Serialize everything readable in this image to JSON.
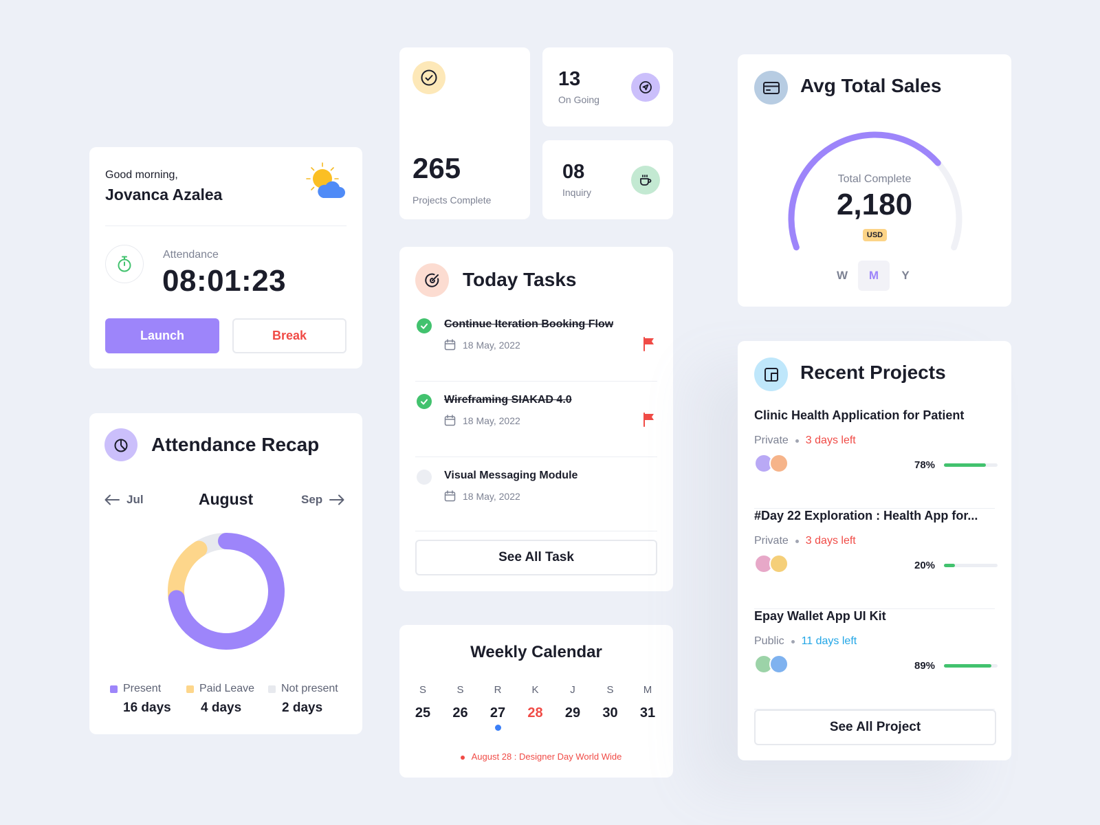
{
  "colors": {
    "accent": "#9d85fa",
    "danger": "#f04b46",
    "success": "#42c26e",
    "link": "#22a6e6",
    "paid_leave": "#fdd68b",
    "not_present": "#e7e9ee"
  },
  "greeting": {
    "hello": "Good morning,",
    "name": "Jovanca Azalea",
    "weather_icon": "sun-cloud-icon"
  },
  "attendance": {
    "label": "Attendance",
    "time": "08:01:23",
    "launch_label": "Launch",
    "break_label": "Break"
  },
  "recap": {
    "title": "Attendance Recap",
    "prev": "Jul",
    "month": "August",
    "next": "Sep",
    "legend": [
      {
        "label": "Present",
        "value": "16 days",
        "days": 16,
        "color": "#9d85fa"
      },
      {
        "label": "Paid Leave",
        "value": "4 days",
        "days": 4,
        "color": "#fdd68b"
      },
      {
        "label": "Not present",
        "value": "2 days",
        "days": 2,
        "color": "#e7e9ee"
      }
    ]
  },
  "stats": {
    "projects_complete": {
      "value": "265",
      "label": "Projects Complete"
    },
    "on_going": {
      "value": "13",
      "label": "On Going"
    },
    "inquiry": {
      "value": "08",
      "label": "Inquiry"
    }
  },
  "tasks": {
    "title": "Today Tasks",
    "items": [
      {
        "title": "Continue Iteration Booking Flow",
        "date": "18 May, 2022",
        "done": true,
        "flag": true
      },
      {
        "title": "Wireframing SIAKAD 4.0",
        "date": "18 May, 2022",
        "done": true,
        "flag": true
      },
      {
        "title": "Visual Messaging Module",
        "date": "18 May, 2022",
        "done": false,
        "flag": false
      }
    ],
    "see_all": "See All Task"
  },
  "calendar": {
    "title": "Weekly Calendar",
    "days": [
      {
        "d": "S",
        "n": "25"
      },
      {
        "d": "S",
        "n": "26"
      },
      {
        "d": "R",
        "n": "27",
        "dot": true
      },
      {
        "d": "K",
        "n": "28",
        "highlight": true
      },
      {
        "d": "J",
        "n": "29"
      },
      {
        "d": "S",
        "n": "30"
      },
      {
        "d": "M",
        "n": "31"
      }
    ],
    "event": "August 28 : Designer Day World Wide"
  },
  "sales": {
    "title": "Avg Total Sales",
    "sub": "Total Complete",
    "value": "2,180",
    "currency": "USD",
    "progress": 0.72,
    "periods": [
      "W",
      "M",
      "Y"
    ],
    "active_period": "M"
  },
  "projects": {
    "title": "Recent Projects",
    "items": [
      {
        "title": "Clinic Health Application for Patient",
        "visibility": "Private",
        "deadline": "3 days left",
        "deadline_color": "#f04b46",
        "percent": "78%",
        "progress": 0.78
      },
      {
        "title": "#Day 22 Exploration : Health App for...",
        "visibility": "Private",
        "deadline": "3 days left",
        "deadline_color": "#f04b46",
        "percent": "20%",
        "progress": 0.2
      },
      {
        "title": "Epay Wallet App UI Kit",
        "visibility": "Public",
        "deadline": "11 days left",
        "deadline_color": "#22a6e6",
        "percent": "89%",
        "progress": 0.89
      }
    ],
    "see_all": "See All Project"
  }
}
